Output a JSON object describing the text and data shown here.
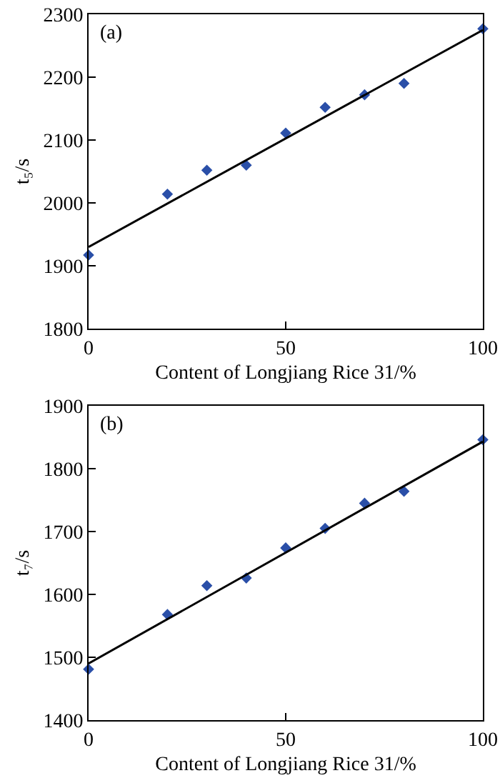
{
  "chart_data": [
    {
      "type": "scatter",
      "xlabel": "Content of Longjiang Rice 31/%",
      "ylabel": "t₅/s",
      "annotations": [
        "(a)"
      ],
      "xlim": [
        0,
        100
      ],
      "xticks": [
        0,
        50,
        100
      ],
      "ylim": [
        1800,
        2300
      ],
      "yticks": [
        1800,
        1900,
        2000,
        2100,
        2200,
        2300
      ],
      "grid": false,
      "series": [
        {
          "color": "#2a4fa8",
          "marker": "diamond",
          "x": [
            0,
            20,
            30,
            40,
            50,
            60,
            70,
            80,
            100
          ],
          "values": [
            1917,
            2014,
            2052,
            2060,
            2111,
            2152,
            2172,
            2190,
            2277
          ]
        },
        {
          "type": "line",
          "color": "#000000",
          "x": [
            0,
            100
          ],
          "values": [
            1930,
            2275
          ]
        }
      ]
    },
    {
      "type": "scatter",
      "xlabel": "Content of Longjiang Rice 31/%",
      "ylabel": "t₇/s",
      "annotations": [
        "(b)"
      ],
      "xlim": [
        0,
        100
      ],
      "xticks": [
        0,
        50,
        100
      ],
      "ylim": [
        1400,
        1900
      ],
      "yticks": [
        1400,
        1500,
        1600,
        1700,
        1800,
        1900
      ],
      "grid": false,
      "series": [
        {
          "color": "#2a4fa8",
          "marker": "diamond",
          "x": [
            0,
            20,
            30,
            40,
            50,
            60,
            70,
            80,
            100
          ],
          "values": [
            1481,
            1568,
            1614,
            1626,
            1674,
            1705,
            1745,
            1764,
            1846
          ]
        },
        {
          "type": "line",
          "color": "#000000",
          "x": [
            0,
            100
          ],
          "values": [
            1490,
            1843
          ]
        }
      ]
    }
  ]
}
